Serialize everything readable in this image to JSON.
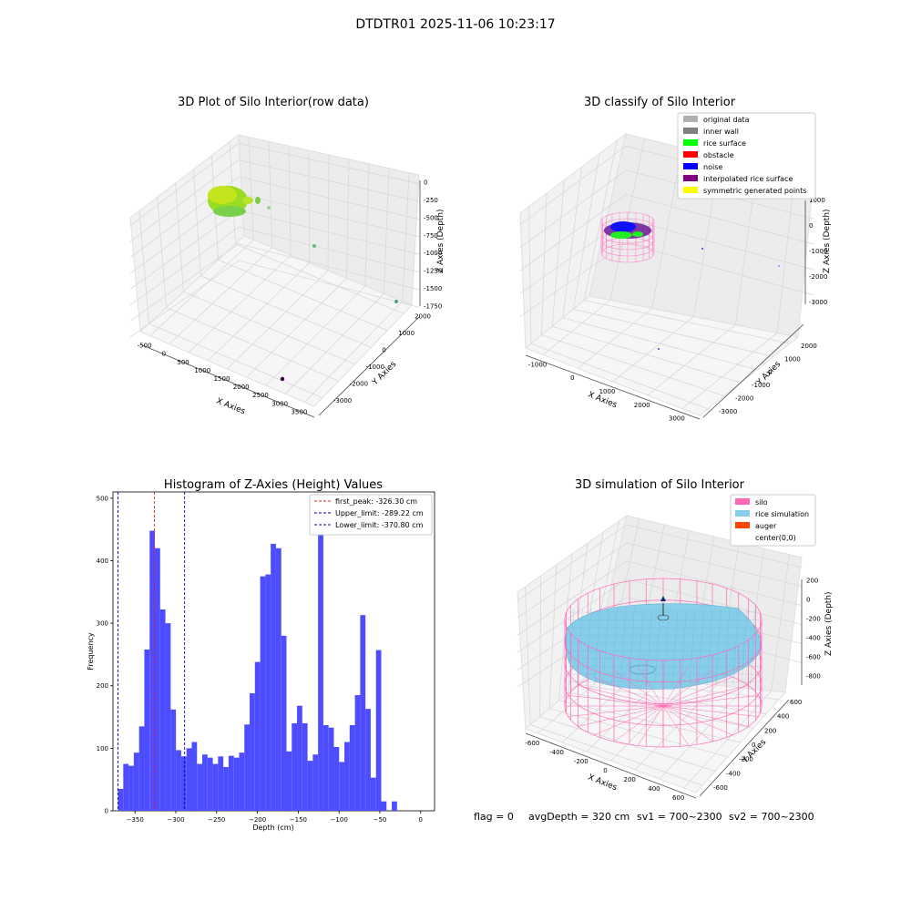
{
  "figure_title": "DTDTR01 2025-11-06 10:23:17",
  "status_line": {
    "flag": "flag = 0",
    "avg_depth": "avgDepth = 320 cm",
    "sv1": "sv1 = 700~2300",
    "sv2": "sv2 = 700~2300"
  },
  "chart_data": [
    {
      "type": "scatter",
      "title": "3D Plot of Silo Interior(row data)",
      "xlabel": "X Axies",
      "ylabel": "Y Axies",
      "zlabel": "Z Axies (Depth)",
      "x_ticks": [
        "-500",
        "0",
        "500",
        "1000",
        "1500",
        "2000",
        "2500",
        "3000",
        "3500"
      ],
      "y_ticks": [
        "-3000",
        "-2000",
        "-1000",
        "0",
        "1000",
        "2000"
      ],
      "z_ticks": [
        "0",
        "-250",
        "-500",
        "-750",
        "-1000",
        "-1250",
        "-1500",
        "-1750"
      ],
      "xlim": [
        -600,
        3600
      ],
      "ylim": [
        -3100,
        2400
      ],
      "zlim": [
        -1900,
        100
      ],
      "grid": true
    },
    {
      "type": "scatter",
      "title": "3D classify of Silo Interior",
      "xlabel": "X Axies",
      "ylabel": "Y Axies",
      "zlabel": "Z Axies (Depth)",
      "x_ticks": [
        "-1000",
        "0",
        "1000",
        "2000",
        "3000"
      ],
      "y_ticks": [
        "-3000",
        "-2000",
        "-1000",
        "0",
        "1000",
        "2000"
      ],
      "z_ticks": [
        "1000",
        "0",
        "-1000",
        "-2000",
        "-3000"
      ],
      "xlim": [
        -1100,
        3600
      ],
      "ylim": [
        -3100,
        2400
      ],
      "zlim": [
        -3200,
        1100
      ],
      "grid": true,
      "legend_position": "top-right",
      "legend": [
        {
          "label": "original data",
          "color": "#b0b0b0"
        },
        {
          "label": "inner wall",
          "color": "#808080"
        },
        {
          "label": "rice surface",
          "color": "#00ff00"
        },
        {
          "label": "obstacle",
          "color": "#ff0000"
        },
        {
          "label": "noise",
          "color": "#0000ff"
        },
        {
          "label": "interpolated rice surface",
          "color": "#800080"
        },
        {
          "label": "symmetric generated points",
          "color": "#ffff00"
        }
      ]
    },
    {
      "type": "bar",
      "title": "Histogram of Z-Axies (Height) Values",
      "xlabel": "Depth (cm)",
      "ylabel": "Frequency",
      "xlim": [
        -377,
        17
      ],
      "ylim": [
        0,
        510
      ],
      "x_ticks": [
        -350,
        -300,
        -250,
        -200,
        -150,
        -100,
        -50,
        0
      ],
      "y_ticks": [
        0,
        100,
        200,
        300,
        400,
        500
      ],
      "bar_color": "#4d4dff",
      "bin_start": -370.8,
      "bin_width": 6.45,
      "values": [
        35,
        75,
        72,
        93,
        135,
        258,
        448,
        420,
        322,
        300,
        162,
        97,
        87,
        100,
        110,
        75,
        90,
        85,
        75,
        87,
        70,
        88,
        85,
        93,
        138,
        188,
        238,
        375,
        378,
        427,
        420,
        280,
        95,
        140,
        168,
        140,
        80,
        90,
        490,
        137,
        133,
        102,
        78,
        110,
        137,
        185,
        313,
        163,
        53,
        257,
        15,
        0,
        15
      ],
      "legend_position": "top-right",
      "lines": [
        {
          "label": "first_peak: -326.30 cm",
          "x": -326.3,
          "color": "#dd2222"
        },
        {
          "label": "Upper_limit: -289.22 cm",
          "x": -289.22,
          "color": "#0000aa"
        },
        {
          "label": "Lower_limit: -370.80 cm",
          "x": -370.8,
          "color": "#0000aa"
        }
      ]
    },
    {
      "type": "scatter",
      "title": "3D simulation of Silo Interior",
      "xlabel": "X Axies",
      "ylabel": "Y Axies",
      "zlabel": "Z Axies (Depth)",
      "x_ticks": [
        "-600",
        "-400",
        "-200",
        "0",
        "200",
        "400",
        "600"
      ],
      "y_ticks": [
        "-600",
        "-400",
        "-200",
        "0",
        "200",
        "400",
        "600"
      ],
      "z_ticks": [
        "200",
        "0",
        "-200",
        "-400",
        "-600",
        "-800"
      ],
      "xlim": [
        -650,
        650
      ],
      "ylim": [
        -650,
        650
      ],
      "zlim": [
        -950,
        300
      ],
      "grid": true,
      "legend_position": "top-right",
      "legend": [
        {
          "label": "silo",
          "color": "#ff69b4"
        },
        {
          "label": "rice simulation",
          "color": "#87ceeb"
        },
        {
          "label": "auger",
          "color": "#ff4500"
        },
        {
          "label": "center(0,0)",
          "color": "none"
        }
      ]
    }
  ]
}
